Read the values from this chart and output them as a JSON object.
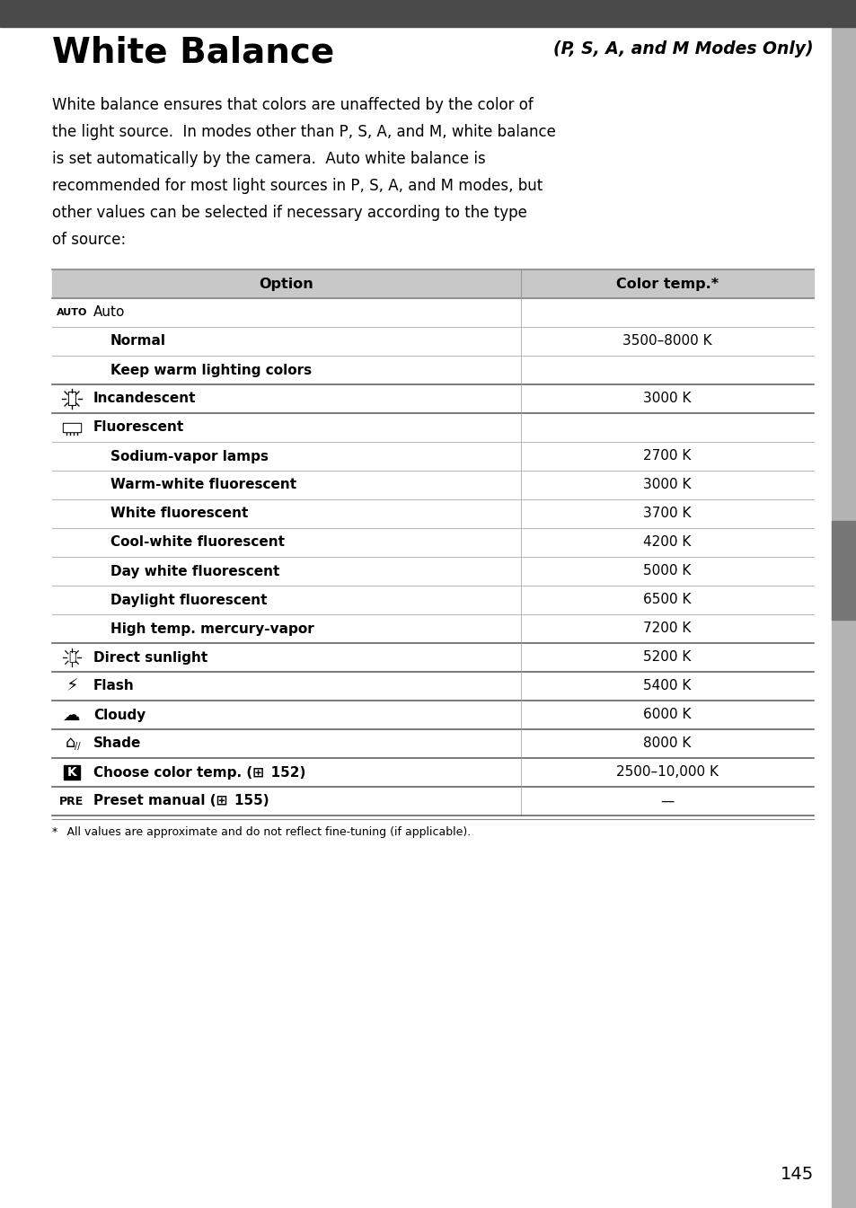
{
  "page_bg": "#ffffff",
  "header_bg": "#4a4a4a",
  "sidebar_bg": "#b3b3b3",
  "title_main": "White Balance",
  "title_sub": "(P, S, A, and M Modes Only)",
  "table_header": [
    "Option",
    "Color temp.*"
  ],
  "table_header_bg": "#c8c8c8",
  "table_rows": [
    {
      "icon": "AUTO",
      "option": "Auto",
      "color_temp": "",
      "level": 0,
      "bold": false,
      "thick_top": true
    },
    {
      "icon": "",
      "option": "Normal",
      "color_temp": "3500–8000 K",
      "level": 1,
      "bold": true,
      "thick_top": false
    },
    {
      "icon": "",
      "option": "Keep warm lighting colors",
      "color_temp": "",
      "level": 1,
      "bold": true,
      "thick_top": false
    },
    {
      "icon": "INC",
      "option": "Incandescent",
      "color_temp": "3000 K",
      "level": 0,
      "bold": true,
      "thick_top": true
    },
    {
      "icon": "FLU",
      "option": "Fluorescent",
      "color_temp": "",
      "level": 0,
      "bold": true,
      "thick_top": true
    },
    {
      "icon": "",
      "option": "Sodium-vapor lamps",
      "color_temp": "2700 K",
      "level": 1,
      "bold": true,
      "thick_top": false
    },
    {
      "icon": "",
      "option": "Warm-white fluorescent",
      "color_temp": "3000 K",
      "level": 1,
      "bold": true,
      "thick_top": false
    },
    {
      "icon": "",
      "option": "White fluorescent",
      "color_temp": "3700 K",
      "level": 1,
      "bold": true,
      "thick_top": false
    },
    {
      "icon": "",
      "option": "Cool-white fluorescent",
      "color_temp": "4200 K",
      "level": 1,
      "bold": true,
      "thick_top": false
    },
    {
      "icon": "",
      "option": "Day white fluorescent",
      "color_temp": "5000 K",
      "level": 1,
      "bold": true,
      "thick_top": false
    },
    {
      "icon": "",
      "option": "Daylight fluorescent",
      "color_temp": "6500 K",
      "level": 1,
      "bold": true,
      "thick_top": false
    },
    {
      "icon": "",
      "option": "High temp. mercury-vapor",
      "color_temp": "7200 K",
      "level": 1,
      "bold": true,
      "thick_top": false
    },
    {
      "icon": "SUN",
      "option": "Direct sunlight",
      "color_temp": "5200 K",
      "level": 0,
      "bold": true,
      "thick_top": true
    },
    {
      "icon": "FLA",
      "option": "Flash",
      "color_temp": "5400 K",
      "level": 0,
      "bold": true,
      "thick_top": true
    },
    {
      "icon": "CLO",
      "option": "Cloudy",
      "color_temp": "6000 K",
      "level": 0,
      "bold": true,
      "thick_top": true
    },
    {
      "icon": "SHA",
      "option": "Shade",
      "color_temp": "8000 K",
      "level": 0,
      "bold": true,
      "thick_top": true
    },
    {
      "icon": "K",
      "option": "Choose color temp. (⊞ 152)",
      "color_temp": "2500–10,000 K",
      "level": 0,
      "bold": true,
      "thick_top": true
    },
    {
      "icon": "PRE",
      "option": "Preset manual (⊞ 155)",
      "color_temp": "—",
      "level": 0,
      "bold": true,
      "thick_top": true
    }
  ],
  "footnote": "*  All values are approximate and do not reflect fine-tuning (if applicable).",
  "page_number": "145"
}
